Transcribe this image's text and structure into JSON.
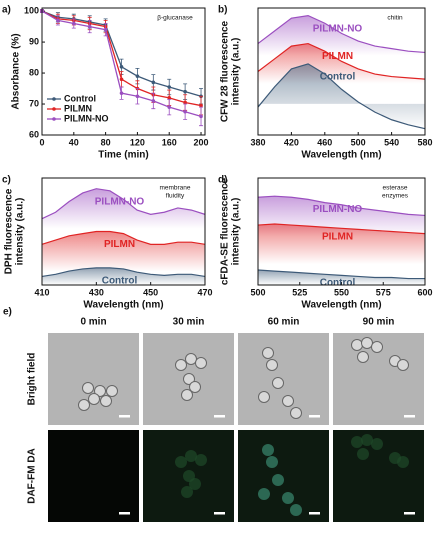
{
  "chart_data": [
    {
      "type": "line",
      "label": "a)",
      "annotation": [
        "β-glucanase"
      ],
      "xlabel": "Time (min)",
      "ylabel": [
        "Absorbance (%)"
      ],
      "x": [
        0,
        20,
        40,
        60,
        80,
        100,
        120,
        140,
        160,
        180,
        200
      ],
      "xlim": [
        0,
        205
      ],
      "xticks": [
        0,
        40,
        80,
        120,
        160,
        200
      ],
      "ylim": [
        60,
        101
      ],
      "yticks": [
        60,
        70,
        80,
        90,
        100
      ],
      "legend": "lower left",
      "series": [
        {
          "name": "Control",
          "color": "#3d5a78",
          "values": [
            100,
            98,
            97.5,
            96.5,
            95.5,
            82,
            79,
            77,
            75.5,
            74,
            72.5
          ],
          "errors": [
            0.5,
            1.5,
            1.5,
            2,
            2,
            2.5,
            2.5,
            2.5,
            2.5,
            2.5,
            2.5
          ]
        },
        {
          "name": "PILMN",
          "color": "#e02424",
          "values": [
            100,
            97.5,
            97,
            96,
            95,
            78,
            75,
            73,
            72,
            70.5,
            69.5
          ],
          "errors": [
            0.5,
            1.5,
            1.5,
            2,
            2,
            2.5,
            2.5,
            2.5,
            2.5,
            2.5,
            3
          ]
        },
        {
          "name": "PILMN-NO",
          "color": "#9b4fc0",
          "values": [
            100,
            97,
            96,
            95,
            94,
            73.5,
            72.5,
            71,
            69,
            67.5,
            66
          ],
          "errors": [
            0.5,
            1.5,
            1.5,
            2,
            2,
            2,
            2.5,
            2.5,
            2.5,
            2.5,
            3
          ]
        }
      ]
    },
    {
      "type": "area",
      "label": "b)",
      "annotation": [
        "chitin"
      ],
      "xlabel": "Wavelength (nm)",
      "ylabel": [
        "CFW 28 fluorescence",
        "intensity (a.u.)"
      ],
      "x": [
        380,
        400,
        420,
        440,
        460,
        480,
        500,
        520,
        540,
        560,
        580
      ],
      "xlim": [
        380,
        580
      ],
      "xticks": [
        380,
        420,
        460,
        500,
        540,
        580
      ],
      "ylim": [
        0,
        100
      ],
      "series": [
        {
          "name": "PILMN-NO",
          "color": "#9b4fc0",
          "values": [
            72,
            82,
            92,
            94,
            88,
            80,
            74,
            70,
            68,
            66,
            65
          ]
        },
        {
          "name": "PILMN",
          "color": "#e02424",
          "values": [
            50,
            60,
            70,
            72,
            66,
            58,
            52,
            48,
            46,
            45,
            44
          ]
        },
        {
          "name": "Control",
          "color": "#3d5a78",
          "values": [
            22,
            38,
            52,
            56,
            48,
            36,
            26,
            18,
            12,
            8,
            5
          ]
        }
      ]
    },
    {
      "type": "area",
      "label": "c)",
      "annotation": [
        "membrane",
        "fluidity"
      ],
      "xlabel": "Wavelength (nm)",
      "ylabel": [
        "DPH fluorescence",
        "intensity (a.u.)"
      ],
      "x": [
        410,
        415,
        420,
        425,
        430,
        435,
        440,
        445,
        450,
        455,
        460,
        465,
        470
      ],
      "xlim": [
        410,
        470
      ],
      "xticks": [
        410,
        430,
        450,
        470
      ],
      "ylim": [
        0,
        100
      ],
      "series": [
        {
          "name": "PILMN-NO",
          "color": "#9b4fc0",
          "values": [
            62,
            68,
            78,
            86,
            90,
            88,
            80,
            70,
            66,
            68,
            72,
            70,
            66
          ]
        },
        {
          "name": "PILMN",
          "color": "#e02424",
          "values": [
            38,
            42,
            46,
            48,
            50,
            50,
            48,
            42,
            38,
            38,
            40,
            40,
            38
          ]
        },
        {
          "name": "Control",
          "color": "#3d5a78",
          "values": [
            8,
            10,
            13,
            15,
            16,
            16,
            15,
            12,
            10,
            9,
            10,
            10,
            8
          ]
        }
      ]
    },
    {
      "type": "area",
      "label": "d)",
      "annotation": [
        "esterase",
        "enzymes"
      ],
      "xlabel": "Wavelength (nm)",
      "ylabel": [
        "cFDA-SE fluorescence",
        "intensity (a.u.)"
      ],
      "x": [
        500,
        510,
        520,
        530,
        540,
        550,
        560,
        570,
        580,
        590,
        600
      ],
      "xlim": [
        500,
        600
      ],
      "xticks": [
        500,
        525,
        550,
        575,
        600
      ],
      "ylim": [
        0,
        100
      ],
      "series": [
        {
          "name": "PILMN-NO",
          "color": "#9b4fc0",
          "values": [
            82,
            83,
            82,
            80,
            77,
            75,
            72,
            70,
            68,
            66,
            65
          ]
        },
        {
          "name": "PILMN",
          "color": "#e02424",
          "values": [
            56,
            57,
            56,
            55,
            54,
            53,
            52,
            51,
            50,
            49,
            48
          ]
        },
        {
          "name": "Control",
          "color": "#3d5a78",
          "values": [
            14,
            13,
            12,
            11,
            10,
            9,
            8,
            7,
            7,
            6,
            6
          ]
        }
      ]
    }
  ],
  "panel_e": {
    "label": "e)",
    "columns": [
      "0 min",
      "30 min",
      "60 min",
      "90 min"
    ],
    "rows": [
      "Bright field",
      "DAF-FM DA"
    ]
  }
}
